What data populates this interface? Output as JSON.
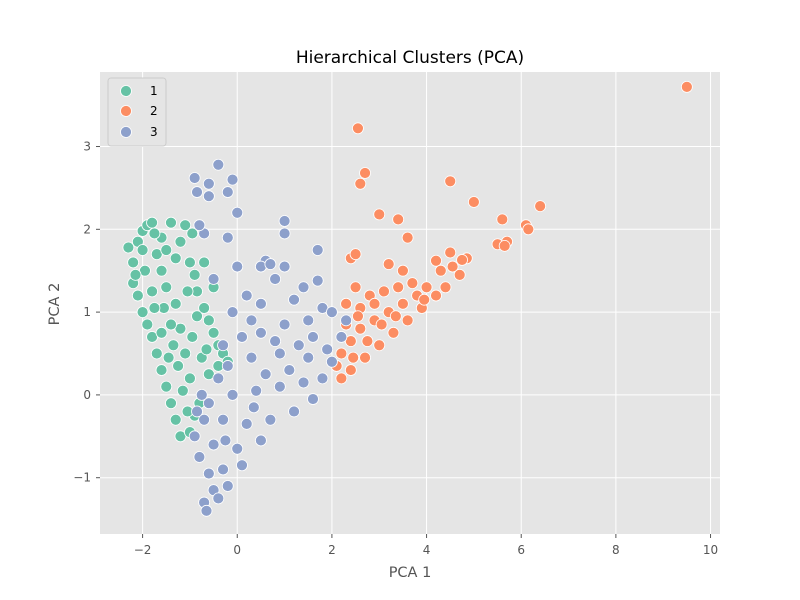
{
  "chart_data": {
    "type": "scatter",
    "title": "Hierarchical Clusters (PCA)",
    "xlabel": "PCA 1",
    "ylabel": "PCA 2",
    "xlim": [
      -2.9,
      10.2
    ],
    "ylim": [
      -1.68,
      3.9
    ],
    "xticks": [
      -2,
      0,
      2,
      4,
      6,
      8,
      10
    ],
    "yticks": [
      -1,
      0,
      1,
      2,
      3
    ],
    "grid": true,
    "legend_position": "top-left",
    "colors": {
      "plot_background": "#e5e5e5",
      "grid": "#ffffff",
      "marker_edge": "#ffffff"
    },
    "series": [
      {
        "name": "1",
        "color": "#66c2a5",
        "points": [
          [
            -2.3,
            1.78
          ],
          [
            -2.2,
            1.6
          ],
          [
            -2.1,
            1.85
          ],
          [
            -2.0,
            1.98
          ],
          [
            -1.9,
            2.05
          ],
          [
            -1.8,
            2.08
          ],
          [
            -1.4,
            2.08
          ],
          [
            -1.1,
            2.05
          ],
          [
            -1.2,
            1.85
          ],
          [
            -1.6,
            1.9
          ],
          [
            -1.3,
            1.65
          ],
          [
            -1.0,
            1.6
          ],
          [
            -0.9,
            1.45
          ],
          [
            -0.85,
            1.25
          ],
          [
            -0.7,
            1.05
          ],
          [
            -0.6,
            0.9
          ],
          [
            -0.5,
            0.75
          ],
          [
            -0.4,
            0.6
          ],
          [
            -0.3,
            0.5
          ],
          [
            -0.2,
            0.4
          ],
          [
            -2.2,
            1.35
          ],
          [
            -2.1,
            1.2
          ],
          [
            -2.0,
            1.0
          ],
          [
            -1.9,
            0.85
          ],
          [
            -1.8,
            0.7
          ],
          [
            -1.7,
            0.5
          ],
          [
            -1.6,
            0.3
          ],
          [
            -1.5,
            0.1
          ],
          [
            -1.4,
            -0.1
          ],
          [
            -1.3,
            -0.3
          ],
          [
            -1.2,
            -0.5
          ],
          [
            -1.0,
            -0.45
          ],
          [
            -0.9,
            -0.25
          ],
          [
            -0.8,
            -0.1
          ],
          [
            -1.0,
            0.2
          ],
          [
            -1.1,
            0.5
          ],
          [
            -1.2,
            0.8
          ],
          [
            -1.3,
            1.1
          ],
          [
            -1.5,
            1.3
          ],
          [
            -1.6,
            1.5
          ],
          [
            -1.7,
            1.7
          ],
          [
            -1.95,
            1.5
          ],
          [
            -1.8,
            1.25
          ],
          [
            -1.55,
            1.05
          ],
          [
            -1.4,
            0.85
          ],
          [
            -1.35,
            0.6
          ],
          [
            -1.25,
            0.35
          ],
          [
            -1.15,
            0.05
          ],
          [
            -0.95,
            0.7
          ],
          [
            -0.75,
            0.45
          ],
          [
            -0.6,
            0.25
          ],
          [
            -0.5,
            1.3
          ],
          [
            -0.7,
            1.6
          ],
          [
            -0.95,
            1.95
          ],
          [
            -2.0,
            1.75
          ],
          [
            -1.75,
            1.95
          ],
          [
            -1.5,
            1.75
          ],
          [
            -2.15,
            1.45
          ],
          [
            -1.05,
            1.25
          ],
          [
            -0.85,
            0.95
          ],
          [
            -1.45,
            0.45
          ],
          [
            -1.6,
            0.75
          ],
          [
            -1.75,
            1.05
          ],
          [
            -0.65,
            0.55
          ],
          [
            -0.4,
            0.35
          ],
          [
            -1.05,
            -0.2
          ]
        ]
      },
      {
        "name": "2",
        "color": "#fc8d62",
        "points": [
          [
            9.5,
            3.72
          ],
          [
            2.55,
            3.22
          ],
          [
            2.7,
            2.68
          ],
          [
            2.6,
            2.55
          ],
          [
            4.5,
            2.58
          ],
          [
            5.0,
            2.33
          ],
          [
            6.4,
            2.28
          ],
          [
            3.0,
            2.18
          ],
          [
            3.4,
            2.12
          ],
          [
            5.6,
            2.12
          ],
          [
            6.1,
            2.05
          ],
          [
            6.15,
            2.0
          ],
          [
            3.6,
            1.9
          ],
          [
            5.7,
            1.85
          ],
          [
            5.5,
            1.82
          ],
          [
            5.65,
            1.8
          ],
          [
            4.5,
            1.72
          ],
          [
            4.85,
            1.65
          ],
          [
            4.75,
            1.63
          ],
          [
            4.2,
            1.62
          ],
          [
            2.4,
            1.65
          ],
          [
            2.5,
            1.7
          ],
          [
            3.2,
            1.58
          ],
          [
            3.5,
            1.5
          ],
          [
            4.3,
            1.5
          ],
          [
            4.55,
            1.55
          ],
          [
            4.7,
            1.45
          ],
          [
            4.0,
            1.3
          ],
          [
            3.8,
            1.2
          ],
          [
            3.5,
            1.1
          ],
          [
            3.2,
            1.0
          ],
          [
            2.9,
            0.9
          ],
          [
            2.6,
            0.8
          ],
          [
            2.4,
            0.65
          ],
          [
            2.2,
            0.5
          ],
          [
            2.1,
            0.35
          ],
          [
            2.2,
            0.2
          ],
          [
            2.4,
            0.3
          ],
          [
            2.7,
            0.45
          ],
          [
            3.0,
            0.6
          ],
          [
            3.3,
            0.75
          ],
          [
            3.6,
            0.9
          ],
          [
            3.9,
            1.05
          ],
          [
            4.2,
            1.2
          ],
          [
            4.4,
            1.3
          ],
          [
            2.8,
            1.2
          ],
          [
            2.5,
            1.3
          ],
          [
            2.3,
            1.1
          ],
          [
            2.3,
            0.85
          ],
          [
            2.6,
            1.05
          ],
          [
            2.9,
            1.1
          ],
          [
            3.1,
            1.25
          ],
          [
            3.4,
            1.3
          ],
          [
            3.7,
            1.35
          ],
          [
            2.75,
            0.65
          ],
          [
            3.05,
            0.85
          ],
          [
            3.35,
            0.95
          ],
          [
            2.45,
            0.45
          ],
          [
            2.55,
            0.95
          ],
          [
            3.95,
            1.15
          ]
        ]
      },
      {
        "name": "3",
        "color": "#8da0cb",
        "points": [
          [
            -0.4,
            2.78
          ],
          [
            -0.9,
            2.62
          ],
          [
            -0.1,
            2.6
          ],
          [
            -0.6,
            2.55
          ],
          [
            -0.2,
            2.45
          ],
          [
            -0.85,
            2.45
          ],
          [
            -0.6,
            2.4
          ],
          [
            0.0,
            2.2
          ],
          [
            1.0,
            2.1
          ],
          [
            -0.2,
            1.9
          ],
          [
            1.0,
            1.95
          ],
          [
            -0.7,
            1.95
          ],
          [
            -0.8,
            2.05
          ],
          [
            1.7,
            1.75
          ],
          [
            0.6,
            1.62
          ],
          [
            0.5,
            1.55
          ],
          [
            0.7,
            1.58
          ],
          [
            0.0,
            1.55
          ],
          [
            1.0,
            1.55
          ],
          [
            -0.5,
            1.4
          ],
          [
            0.8,
            1.4
          ],
          [
            1.7,
            1.38
          ],
          [
            1.4,
            1.3
          ],
          [
            0.2,
            1.2
          ],
          [
            0.5,
            1.1
          ],
          [
            1.2,
            1.15
          ],
          [
            1.8,
            1.05
          ],
          [
            2.0,
            1.0
          ],
          [
            1.5,
            0.9
          ],
          [
            1.0,
            0.85
          ],
          [
            0.5,
            0.75
          ],
          [
            0.1,
            0.7
          ],
          [
            -0.3,
            0.6
          ],
          [
            0.3,
            0.45
          ],
          [
            0.9,
            0.5
          ],
          [
            1.5,
            0.45
          ],
          [
            2.0,
            0.4
          ],
          [
            1.8,
            0.2
          ],
          [
            1.4,
            0.15
          ],
          [
            0.9,
            0.1
          ],
          [
            0.4,
            0.05
          ],
          [
            -0.1,
            0.0
          ],
          [
            -0.6,
            -0.1
          ],
          [
            -0.3,
            -0.3
          ],
          [
            0.2,
            -0.35
          ],
          [
            0.7,
            -0.3
          ],
          [
            1.2,
            -0.2
          ],
          [
            1.6,
            -0.05
          ],
          [
            0.5,
            -0.55
          ],
          [
            0.0,
            -0.65
          ],
          [
            -0.5,
            -0.6
          ],
          [
            -0.8,
            -0.75
          ],
          [
            -0.6,
            -0.95
          ],
          [
            -0.3,
            -0.9
          ],
          [
            0.1,
            -0.85
          ],
          [
            -0.2,
            -1.1
          ],
          [
            -0.5,
            -1.15
          ],
          [
            -0.7,
            -1.3
          ],
          [
            -0.65,
            -1.4
          ],
          [
            -0.4,
            -1.25
          ],
          [
            -0.9,
            -0.5
          ],
          [
            -0.7,
            -0.3
          ],
          [
            -0.4,
            0.2
          ],
          [
            -0.2,
            0.35
          ],
          [
            0.6,
            0.25
          ],
          [
            1.1,
            0.3
          ],
          [
            1.3,
            0.6
          ],
          [
            0.8,
            0.65
          ],
          [
            0.3,
            0.9
          ],
          [
            -0.1,
            1.0
          ],
          [
            1.6,
            0.7
          ],
          [
            2.2,
            0.7
          ],
          [
            2.3,
            0.9
          ],
          [
            1.9,
            0.55
          ],
          [
            -0.75,
            0.0
          ],
          [
            -0.85,
            -0.2
          ],
          [
            0.35,
            -0.15
          ],
          [
            -0.25,
            -0.55
          ]
        ]
      }
    ]
  }
}
